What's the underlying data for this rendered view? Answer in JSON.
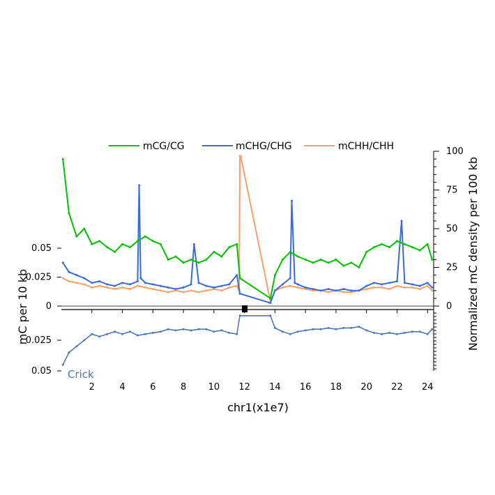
{
  "chart_data": {
    "type": "line",
    "xlabel": "chr1(x1e7)",
    "ylabel_left": "mC per 10 kb",
    "ylabel_right": "Normalized mC density per 100 kb",
    "crick_label": "Crick",
    "x_range": [
      0,
      24.4
    ],
    "x_ticks": [
      2,
      4,
      6,
      8,
      10,
      12,
      14,
      16,
      18,
      20,
      22,
      24
    ],
    "watson_y_ticks": [
      0,
      0.025,
      0.05
    ],
    "watson_y_tick_labels": [
      "0",
      "0.025",
      "0.05"
    ],
    "crick_y_tick_labels": [
      "0.025",
      "0.05"
    ],
    "crick_y_tick_values": [
      0.025,
      0.05
    ],
    "right_y_range": [
      0,
      100
    ],
    "right_y_ticks": [
      0,
      25,
      50,
      75,
      100
    ],
    "centromere_gap": [
      11.7,
      13.6
    ],
    "legend_placement": "top",
    "series": [
      {
        "name": "mCG/CG",
        "color": "#00c000",
        "x": [
          0.1,
          0.5,
          1,
          1.5,
          2,
          2.5,
          3,
          3.5,
          4,
          4.5,
          5,
          5.5,
          6,
          6.5,
          7,
          7.5,
          8,
          8.5,
          9,
          9.5,
          10,
          10.5,
          11,
          11.5,
          11.7,
          13.7,
          14,
          14.5,
          15,
          15.5,
          16,
          16.5,
          17,
          17.5,
          18,
          18.5,
          19,
          19.5,
          20,
          20.5,
          21,
          21.5,
          22,
          22.5,
          23,
          23.5,
          24,
          24.3
        ],
        "values": [
          95,
          60,
          45,
          50,
          40,
          42,
          38,
          35,
          40,
          38,
          42,
          45,
          42,
          40,
          30,
          32,
          28,
          30,
          28,
          30,
          35,
          32,
          38,
          40,
          18,
          5,
          20,
          30,
          35,
          32,
          30,
          28,
          30,
          28,
          30,
          26,
          28,
          25,
          35,
          38,
          40,
          38,
          42,
          40,
          38,
          36,
          40,
          30
        ]
      },
      {
        "name": "mCHG/CHG",
        "color": "#3a6ad8",
        "x": [
          0.1,
          0.5,
          1,
          1.5,
          2,
          2.5,
          3,
          3.5,
          4,
          4.5,
          5,
          5.1,
          5.2,
          5.5,
          6,
          6.5,
          7,
          7.5,
          8,
          8.5,
          8.7,
          9,
          9.5,
          10,
          10.5,
          11,
          11.5,
          11.7,
          13.7,
          14,
          14.5,
          15,
          15.1,
          15.3,
          15.5,
          16,
          16.5,
          17,
          17.5,
          18,
          18.5,
          19,
          19.5,
          20,
          20.5,
          21,
          21.5,
          22,
          22.3,
          22.5,
          23,
          23.5,
          24,
          24.3
        ],
        "values": [
          28,
          22,
          20,
          18,
          15,
          16,
          14,
          13,
          15,
          14,
          16,
          78,
          18,
          15,
          14,
          13,
          12,
          11,
          12,
          14,
          40,
          15,
          13,
          12,
          13,
          14,
          20,
          8,
          2,
          10,
          14,
          18,
          68,
          15,
          14,
          12,
          11,
          10,
          11,
          10,
          11,
          10,
          10,
          13,
          15,
          14,
          15,
          16,
          55,
          15,
          14,
          13,
          15,
          12
        ]
      },
      {
        "name": "mCHH/CHH",
        "color": "#f4a06a",
        "x": [
          0.1,
          0.5,
          1,
          1.5,
          2,
          2.5,
          3,
          3.5,
          4,
          4.5,
          5,
          5.5,
          6,
          6.5,
          7,
          7.5,
          8,
          8.5,
          9,
          9.5,
          10,
          10.5,
          11,
          11.5,
          11.65,
          11.7,
          11.75,
          13.7,
          14,
          14.5,
          15,
          15.5,
          16,
          16.5,
          17,
          17.5,
          18,
          18.5,
          19,
          19.5,
          20,
          20.5,
          21,
          21.5,
          22,
          22.5,
          23,
          23.5,
          24,
          24.3
        ],
        "values": [
          18,
          16,
          15,
          14,
          12,
          13,
          12,
          11,
          12,
          11,
          13,
          12,
          11,
          10,
          9,
          10,
          9,
          10,
          9,
          10,
          11,
          10,
          12,
          13,
          10,
          97,
          97,
          3,
          10,
          12,
          13,
          12,
          11,
          10,
          10,
          9,
          10,
          9,
          9,
          10,
          11,
          12,
          12,
          11,
          13,
          12,
          12,
          11,
          13,
          10
        ]
      },
      {
        "name": "Crick",
        "color": "#4a78b8",
        "x": [
          0.1,
          0.5,
          1,
          1.5,
          2,
          2.5,
          3,
          3.5,
          4,
          4.5,
          5,
          5.5,
          6,
          6.5,
          7,
          7.5,
          8,
          8.5,
          9,
          9.5,
          10,
          10.5,
          11,
          11.5,
          11.7,
          13.7,
          14,
          14.5,
          15,
          15.5,
          16,
          16.5,
          17,
          17.5,
          18,
          18.5,
          19,
          19.5,
          20,
          20.5,
          21,
          21.5,
          22,
          22.5,
          23,
          23.5,
          24,
          24.3
        ],
        "values": [
          0.045,
          0.035,
          0.03,
          0.025,
          0.02,
          0.022,
          0.02,
          0.018,
          0.02,
          0.018,
          0.021,
          0.02,
          0.019,
          0.018,
          0.016,
          0.017,
          0.016,
          0.017,
          0.016,
          0.016,
          0.018,
          0.017,
          0.019,
          0.02,
          0.005,
          0.005,
          0.015,
          0.018,
          0.02,
          0.018,
          0.017,
          0.016,
          0.016,
          0.015,
          0.016,
          0.015,
          0.015,
          0.014,
          0.017,
          0.019,
          0.02,
          0.019,
          0.02,
          0.019,
          0.018,
          0.018,
          0.02,
          0.016
        ]
      }
    ]
  }
}
